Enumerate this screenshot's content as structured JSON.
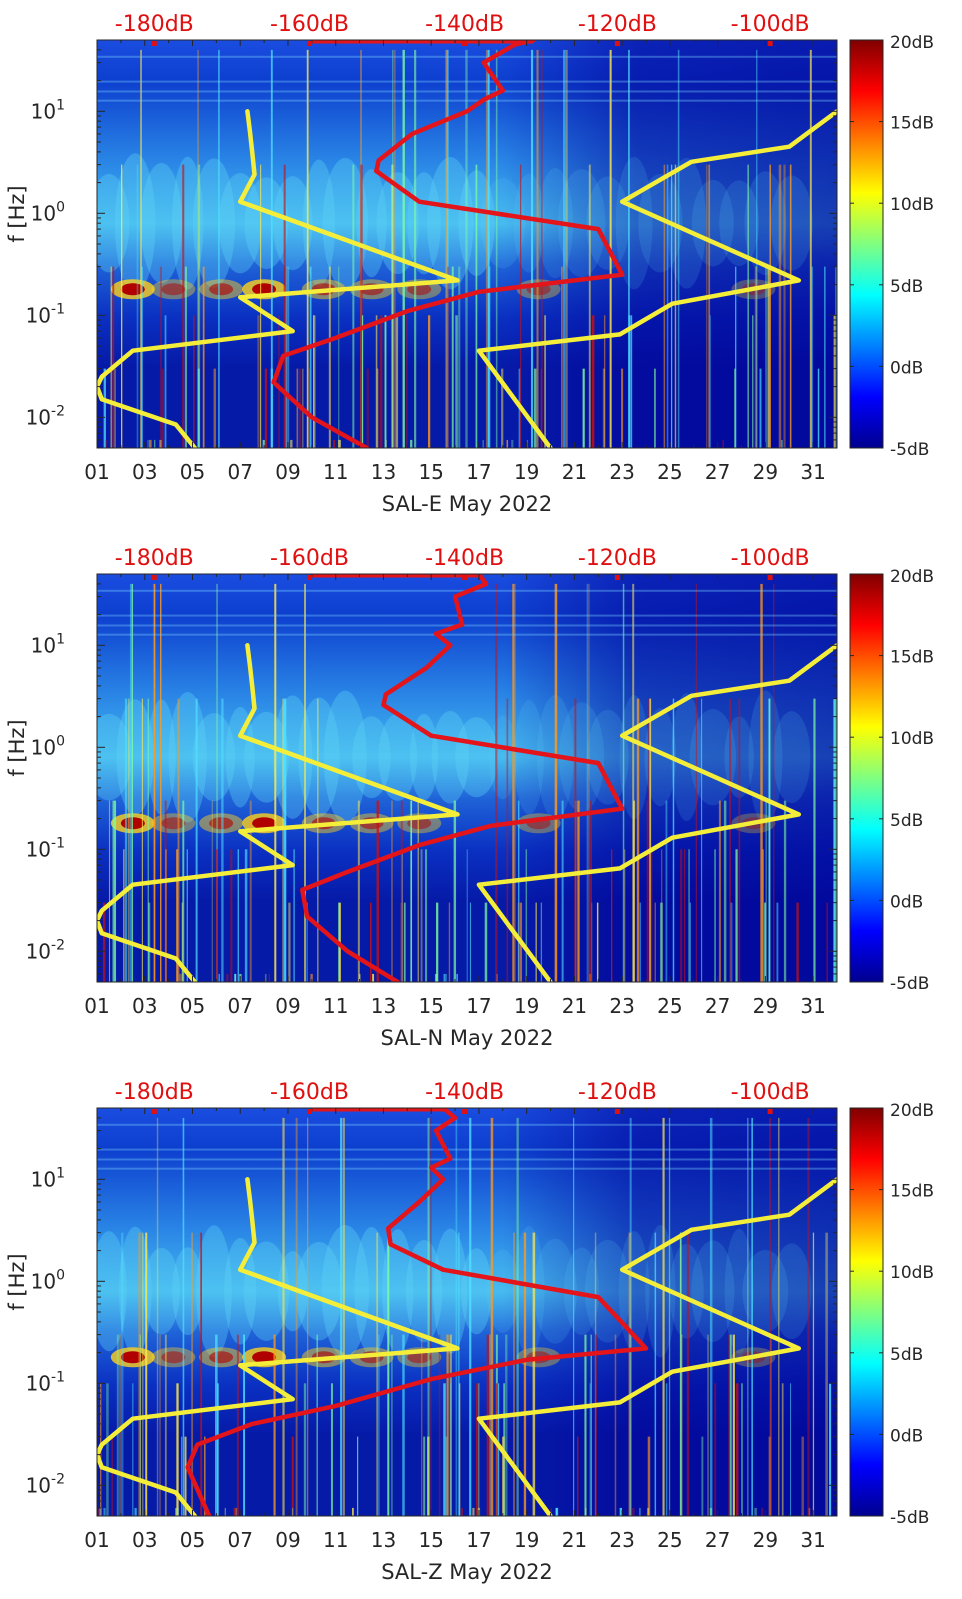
{
  "colors": {
    "axis": "#262626",
    "top_scale": "#e01010",
    "red_curve": "#e3141a",
    "yellow_curve": "#f4ee3a"
  },
  "colorbar": {
    "ticks": [
      -5,
      0,
      5,
      10,
      15,
      20
    ],
    "tick_labels": [
      "-5dB",
      "0dB",
      "5dB",
      "10dB",
      "15dB",
      "20dB"
    ],
    "stops": [
      "#00008f",
      "#0000ff",
      "#0080ff",
      "#00ffff",
      "#80ff80",
      "#ffff00",
      "#ff8000",
      "#ff0000",
      "#800000"
    ]
  },
  "top_axis": {
    "tick_labels": [
      "-180dB",
      "-160dB",
      "-140dB",
      "-120dB",
      "-100dB"
    ],
    "ticks_at_day": [
      3.4,
      9.9,
      16.4,
      22.8,
      29.2
    ],
    "range_db": [
      -190,
      -92
    ]
  },
  "chart_data": [
    {
      "type": "heatmap",
      "xlabel": "SAL-E May 2022",
      "ylabel": "f [Hz]",
      "x_tick_labels": [
        "01",
        "03",
        "05",
        "07",
        "09",
        "11",
        "13",
        "15",
        "17",
        "19",
        "21",
        "23",
        "25",
        "27",
        "29",
        "31"
      ],
      "y_tick_labels": [
        "10-2",
        "10-1",
        "100",
        "101"
      ],
      "xlim_day": [
        1,
        32
      ],
      "ylim_hz": [
        0.005,
        50
      ],
      "y_scale": "log",
      "colorbar_range_db": [
        -5,
        20
      ],
      "yellow_curve": {
        "day": [
          5.1,
          4.3,
          1.2,
          1.0,
          1.2,
          2.5,
          9.2,
          7.0,
          16.1,
          7.0,
          7.6,
          7.5,
          7.4,
          7.3
        ],
        "f_hz": [
          0.005,
          0.0085,
          0.015,
          0.02,
          0.025,
          0.045,
          0.07,
          0.15,
          0.22,
          1.3,
          2.4,
          4.0,
          6.5,
          10
        ]
      },
      "yellow_curve_2": {
        "day": [
          20.0,
          17.0,
          22.9,
          25.1,
          30.4,
          23.0,
          25.9,
          30.0,
          32.0
        ],
        "f_hz": [
          0.005,
          0.045,
          0.065,
          0.13,
          0.22,
          1.3,
          3.2,
          4.5,
          10
        ]
      },
      "red_curve": {
        "day": [
          12.3,
          10.0,
          8.4,
          8.8,
          11.0,
          14.0,
          17.0,
          23.0,
          22.0,
          14.5,
          12.7,
          12.8,
          14.2,
          16.5,
          17.2,
          18.0,
          17.2,
          18.5,
          19.3
        ],
        "f_hz": [
          0.005,
          0.01,
          0.022,
          0.04,
          0.06,
          0.11,
          0.17,
          0.25,
          0.7,
          1.3,
          2.6,
          3.3,
          6.0,
          10.0,
          13.0,
          16.0,
          30.0,
          45.0,
          50.0
        ]
      }
    },
    {
      "type": "heatmap",
      "xlabel": "SAL-N May 2022",
      "ylabel": "f [Hz]",
      "x_tick_labels": [
        "01",
        "03",
        "05",
        "07",
        "09",
        "11",
        "13",
        "15",
        "17",
        "19",
        "21",
        "23",
        "25",
        "27",
        "29",
        "31"
      ],
      "y_tick_labels": [
        "10-2",
        "10-1",
        "100",
        "101"
      ],
      "xlim_day": [
        1,
        32
      ],
      "ylim_hz": [
        0.005,
        50
      ],
      "y_scale": "log",
      "colorbar_range_db": [
        -5,
        20
      ],
      "yellow_curve": {
        "day": [
          5.1,
          4.3,
          1.2,
          1.0,
          1.2,
          2.5,
          9.2,
          7.0,
          16.1,
          7.0,
          7.6,
          7.5,
          7.4,
          7.3
        ],
        "f_hz": [
          0.005,
          0.0085,
          0.015,
          0.02,
          0.025,
          0.045,
          0.07,
          0.15,
          0.22,
          1.3,
          2.4,
          4.0,
          6.5,
          10
        ]
      },
      "yellow_curve_2": {
        "day": [
          20.0,
          17.0,
          22.9,
          25.1,
          30.4,
          23.0,
          25.9,
          30.0,
          32.0
        ],
        "f_hz": [
          0.005,
          0.045,
          0.065,
          0.13,
          0.22,
          1.3,
          3.2,
          4.5,
          10
        ]
      },
      "red_curve": {
        "day": [
          13.6,
          11.5,
          9.8,
          9.6,
          11.5,
          14.5,
          17.5,
          23.0,
          22.0,
          15.0,
          13.0,
          13.1,
          14.8,
          15.8,
          15.2,
          16.3,
          16.0,
          17.3,
          17.0
        ],
        "f_hz": [
          0.005,
          0.01,
          0.022,
          0.04,
          0.06,
          0.11,
          0.17,
          0.25,
          0.7,
          1.3,
          2.6,
          3.3,
          6.0,
          10.0,
          13.0,
          16.0,
          30.0,
          40.0,
          50.0
        ]
      }
    },
    {
      "type": "heatmap",
      "xlabel": "SAL-Z May 2022",
      "ylabel": "f [Hz]",
      "x_tick_labels": [
        "01",
        "03",
        "05",
        "07",
        "09",
        "11",
        "13",
        "15",
        "17",
        "19",
        "21",
        "23",
        "25",
        "27",
        "29",
        "31"
      ],
      "y_tick_labels": [
        "10-2",
        "10-1",
        "100",
        "101"
      ],
      "xlim_day": [
        1,
        32
      ],
      "ylim_hz": [
        0.005,
        50
      ],
      "y_scale": "log",
      "colorbar_range_db": [
        -5,
        20
      ],
      "yellow_curve": {
        "day": [
          5.1,
          4.3,
          1.2,
          1.0,
          1.2,
          2.5,
          9.2,
          7.0,
          16.1,
          7.0,
          7.6,
          7.5,
          7.4,
          7.3
        ],
        "f_hz": [
          0.005,
          0.0085,
          0.015,
          0.02,
          0.025,
          0.045,
          0.07,
          0.15,
          0.22,
          1.3,
          2.4,
          4.0,
          6.5,
          10
        ]
      },
      "yellow_curve_2": {
        "day": [
          20.0,
          17.0,
          22.9,
          25.1,
          30.4,
          23.0,
          25.9,
          30.0,
          32.0
        ],
        "f_hz": [
          0.005,
          0.045,
          0.065,
          0.13,
          0.22,
          1.3,
          3.2,
          4.5,
          10
        ]
      },
      "red_curve": {
        "day": [
          5.7,
          4.8,
          5.2,
          7.5,
          11.0,
          15.0,
          19.0,
          24.0,
          22.0,
          15.5,
          13.3,
          13.2,
          14.5,
          15.5,
          15.0,
          15.8,
          15.2,
          16.0,
          15.5
        ],
        "f_hz": [
          0.005,
          0.015,
          0.025,
          0.04,
          0.06,
          0.11,
          0.17,
          0.22,
          0.7,
          1.3,
          2.3,
          3.3,
          6.0,
          10.0,
          13.0,
          16.0,
          30.0,
          40.0,
          50.0
        ]
      }
    }
  ]
}
